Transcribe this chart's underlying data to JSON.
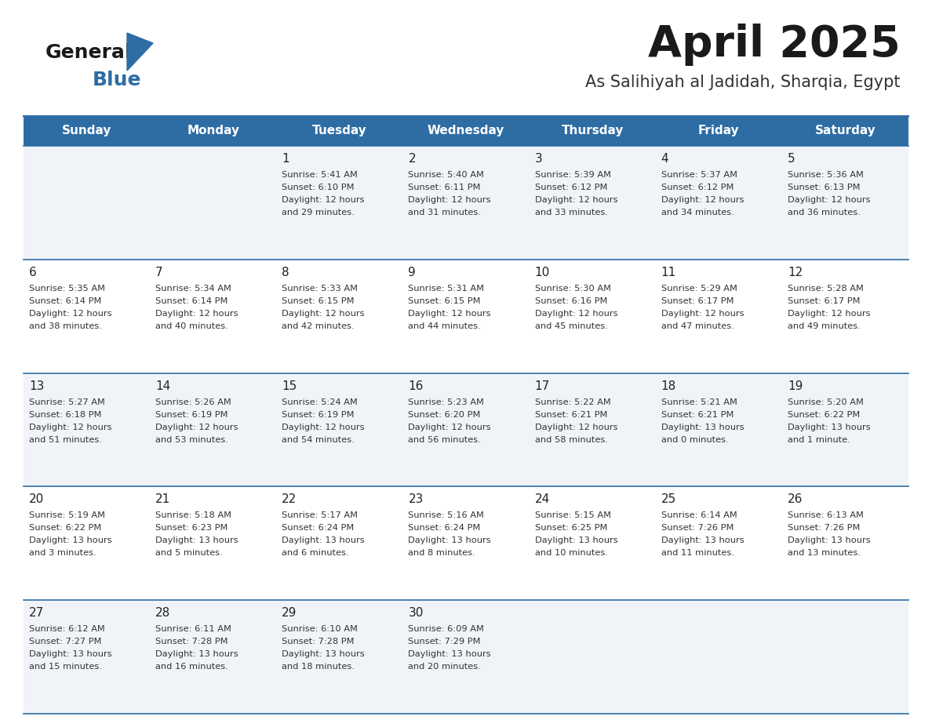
{
  "title": "April 2025",
  "subtitle": "As Salihiyah al Jadidah, Sharqia, Egypt",
  "days_of_week": [
    "Sunday",
    "Monday",
    "Tuesday",
    "Wednesday",
    "Thursday",
    "Friday",
    "Saturday"
  ],
  "header_bg": "#2E6DA4",
  "header_text": "#FFFFFF",
  "row_bg_odd": "#F0F4F8",
  "row_bg_even": "#FFFFFF",
  "cell_border": "#2E6DA4",
  "day_number_color": "#222222",
  "text_color": "#333333",
  "logo_general_color": "#1a1a1a",
  "logo_blue_color": "#2E6DA4",
  "logo_triangle_color": "#2E6DA4",
  "calendar_data": [
    [
      {
        "day": "",
        "sunrise": "",
        "sunset": "",
        "daylight": ""
      },
      {
        "day": "",
        "sunrise": "",
        "sunset": "",
        "daylight": ""
      },
      {
        "day": "1",
        "sunrise": "5:41 AM",
        "sunset": "6:10 PM",
        "daylight": "12 hours\nand 29 minutes."
      },
      {
        "day": "2",
        "sunrise": "5:40 AM",
        "sunset": "6:11 PM",
        "daylight": "12 hours\nand 31 minutes."
      },
      {
        "day": "3",
        "sunrise": "5:39 AM",
        "sunset": "6:12 PM",
        "daylight": "12 hours\nand 33 minutes."
      },
      {
        "day": "4",
        "sunrise": "5:37 AM",
        "sunset": "6:12 PM",
        "daylight": "12 hours\nand 34 minutes."
      },
      {
        "day": "5",
        "sunrise": "5:36 AM",
        "sunset": "6:13 PM",
        "daylight": "12 hours\nand 36 minutes."
      }
    ],
    [
      {
        "day": "6",
        "sunrise": "5:35 AM",
        "sunset": "6:14 PM",
        "daylight": "12 hours\nand 38 minutes."
      },
      {
        "day": "7",
        "sunrise": "5:34 AM",
        "sunset": "6:14 PM",
        "daylight": "12 hours\nand 40 minutes."
      },
      {
        "day": "8",
        "sunrise": "5:33 AM",
        "sunset": "6:15 PM",
        "daylight": "12 hours\nand 42 minutes."
      },
      {
        "day": "9",
        "sunrise": "5:31 AM",
        "sunset": "6:15 PM",
        "daylight": "12 hours\nand 44 minutes."
      },
      {
        "day": "10",
        "sunrise": "5:30 AM",
        "sunset": "6:16 PM",
        "daylight": "12 hours\nand 45 minutes."
      },
      {
        "day": "11",
        "sunrise": "5:29 AM",
        "sunset": "6:17 PM",
        "daylight": "12 hours\nand 47 minutes."
      },
      {
        "day": "12",
        "sunrise": "5:28 AM",
        "sunset": "6:17 PM",
        "daylight": "12 hours\nand 49 minutes."
      }
    ],
    [
      {
        "day": "13",
        "sunrise": "5:27 AM",
        "sunset": "6:18 PM",
        "daylight": "12 hours\nand 51 minutes."
      },
      {
        "day": "14",
        "sunrise": "5:26 AM",
        "sunset": "6:19 PM",
        "daylight": "12 hours\nand 53 minutes."
      },
      {
        "day": "15",
        "sunrise": "5:24 AM",
        "sunset": "6:19 PM",
        "daylight": "12 hours\nand 54 minutes."
      },
      {
        "day": "16",
        "sunrise": "5:23 AM",
        "sunset": "6:20 PM",
        "daylight": "12 hours\nand 56 minutes."
      },
      {
        "day": "17",
        "sunrise": "5:22 AM",
        "sunset": "6:21 PM",
        "daylight": "12 hours\nand 58 minutes."
      },
      {
        "day": "18",
        "sunrise": "5:21 AM",
        "sunset": "6:21 PM",
        "daylight": "13 hours\nand 0 minutes."
      },
      {
        "day": "19",
        "sunrise": "5:20 AM",
        "sunset": "6:22 PM",
        "daylight": "13 hours\nand 1 minute."
      }
    ],
    [
      {
        "day": "20",
        "sunrise": "5:19 AM",
        "sunset": "6:22 PM",
        "daylight": "13 hours\nand 3 minutes."
      },
      {
        "day": "21",
        "sunrise": "5:18 AM",
        "sunset": "6:23 PM",
        "daylight": "13 hours\nand 5 minutes."
      },
      {
        "day": "22",
        "sunrise": "5:17 AM",
        "sunset": "6:24 PM",
        "daylight": "13 hours\nand 6 minutes."
      },
      {
        "day": "23",
        "sunrise": "5:16 AM",
        "sunset": "6:24 PM",
        "daylight": "13 hours\nand 8 minutes."
      },
      {
        "day": "24",
        "sunrise": "5:15 AM",
        "sunset": "6:25 PM",
        "daylight": "13 hours\nand 10 minutes."
      },
      {
        "day": "25",
        "sunrise": "6:14 AM",
        "sunset": "7:26 PM",
        "daylight": "13 hours\nand 11 minutes."
      },
      {
        "day": "26",
        "sunrise": "6:13 AM",
        "sunset": "7:26 PM",
        "daylight": "13 hours\nand 13 minutes."
      }
    ],
    [
      {
        "day": "27",
        "sunrise": "6:12 AM",
        "sunset": "7:27 PM",
        "daylight": "13 hours\nand 15 minutes."
      },
      {
        "day": "28",
        "sunrise": "6:11 AM",
        "sunset": "7:28 PM",
        "daylight": "13 hours\nand 16 minutes."
      },
      {
        "day": "29",
        "sunrise": "6:10 AM",
        "sunset": "7:28 PM",
        "daylight": "13 hours\nand 18 minutes."
      },
      {
        "day": "30",
        "sunrise": "6:09 AM",
        "sunset": "7:29 PM",
        "daylight": "13 hours\nand 20 minutes."
      },
      {
        "day": "",
        "sunrise": "",
        "sunset": "",
        "daylight": ""
      },
      {
        "day": "",
        "sunrise": "",
        "sunset": "",
        "daylight": ""
      },
      {
        "day": "",
        "sunrise": "",
        "sunset": "",
        "daylight": ""
      }
    ]
  ]
}
